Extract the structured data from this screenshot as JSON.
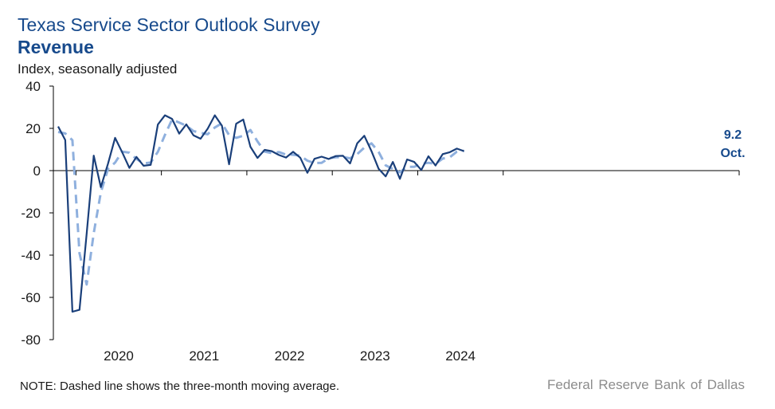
{
  "header": {
    "title": "Texas Service Sector Outlook Survey",
    "subtitle": "Revenue",
    "units": "Index, seasonally adjusted"
  },
  "footer": {
    "note": "NOTE: Dashed line shows the three-month moving average.",
    "source": "Federal Reserve Bank of Dallas"
  },
  "chart_data": {
    "type": "line",
    "title": "Revenue",
    "ylabel": "Index, seasonally adjusted",
    "ylim": [
      -80,
      40
    ],
    "yticks": [
      40,
      20,
      0,
      -20,
      -40,
      -60,
      -80
    ],
    "year_labels": [
      "2020",
      "2021",
      "2022",
      "2023",
      "2024"
    ],
    "x_start": "2019-10",
    "x_end": "2024-10",
    "grid": false,
    "colors": {
      "main": "#1a3f7a",
      "moving_average": "#8fb0de",
      "accent": "#174a8c"
    },
    "last_value_label": "9.2",
    "last_period_label": "Oct.",
    "series": [
      {
        "name": "Revenue index",
        "style": "solid",
        "values": [
          20.9,
          14.5,
          -66.8,
          -65.9,
          -29.9,
          7.1,
          -7.8,
          3.3,
          15.5,
          8.6,
          1.3,
          6.5,
          2.3,
          2.7,
          21.8,
          26.2,
          24.5,
          17.5,
          21.9,
          16.7,
          15.1,
          19.8,
          26.2,
          21.3,
          3.0,
          22.2,
          24.2,
          11.3,
          6.0,
          9.8,
          9.2,
          7.4,
          6.2,
          8.9,
          6.1,
          -1.0,
          5.6,
          6.6,
          5.5,
          6.9,
          7.0,
          3.4,
          12.9,
          16.5,
          9.2,
          0.9,
          -2.7,
          4.1,
          -3.9,
          5.3,
          4.1,
          0.3,
          6.8,
          2.4,
          7.8,
          8.7,
          10.4,
          9.2
        ]
      },
      {
        "name": "Three-month moving average",
        "style": "dashed",
        "values": [
          18.3,
          17.6,
          14.4,
          -39.1,
          -53.9,
          -29.6,
          -10.3,
          0.8,
          3.8,
          9.0,
          8.5,
          5.5,
          3.4,
          3.8,
          8.9,
          16.9,
          24.2,
          22.7,
          21.3,
          18.7,
          17.9,
          17.2,
          20.4,
          22.4,
          16.8,
          15.5,
          16.5,
          19.2,
          13.8,
          9.0,
          8.3,
          8.8,
          7.6,
          7.5,
          7.1,
          4.7,
          3.6,
          3.7,
          5.9,
          6.3,
          6.5,
          5.8,
          7.8,
          10.9,
          12.9,
          8.9,
          2.5,
          0.8,
          -0.8,
          1.8,
          1.8,
          3.2,
          3.7,
          3.2,
          5.7,
          6.3,
          9.0,
          9.4
        ]
      }
    ]
  }
}
